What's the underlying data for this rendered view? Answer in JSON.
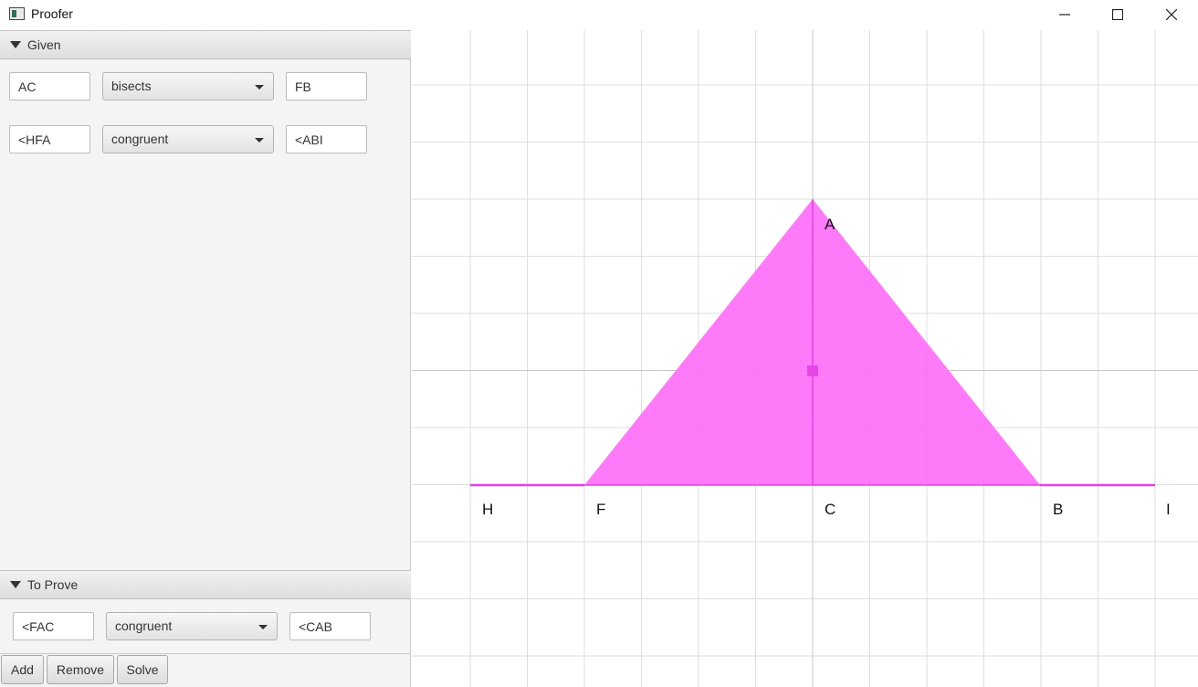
{
  "window": {
    "title": "Proofer",
    "controls": [
      "minimize-icon",
      "maximize-icon",
      "close-icon"
    ]
  },
  "given": {
    "header": "Given",
    "rows": [
      {
        "left": "AC",
        "relation": "bisects",
        "right": "FB"
      },
      {
        "left": "<HFA",
        "relation": "congruent",
        "right": "<ABI"
      }
    ]
  },
  "to_prove": {
    "header": "To Prove",
    "row": {
      "left": "<FAC",
      "relation": "congruent",
      "right": "<CAB"
    }
  },
  "buttons": {
    "add": "Add",
    "remove": "Remove",
    "solve": "Solve"
  },
  "diagram": {
    "points": {
      "A": "A",
      "H": "H",
      "F": "F",
      "C": "C",
      "B": "B",
      "I": "I"
    },
    "fill_color": "#ff6cf7",
    "line_color": "#e440e4"
  }
}
